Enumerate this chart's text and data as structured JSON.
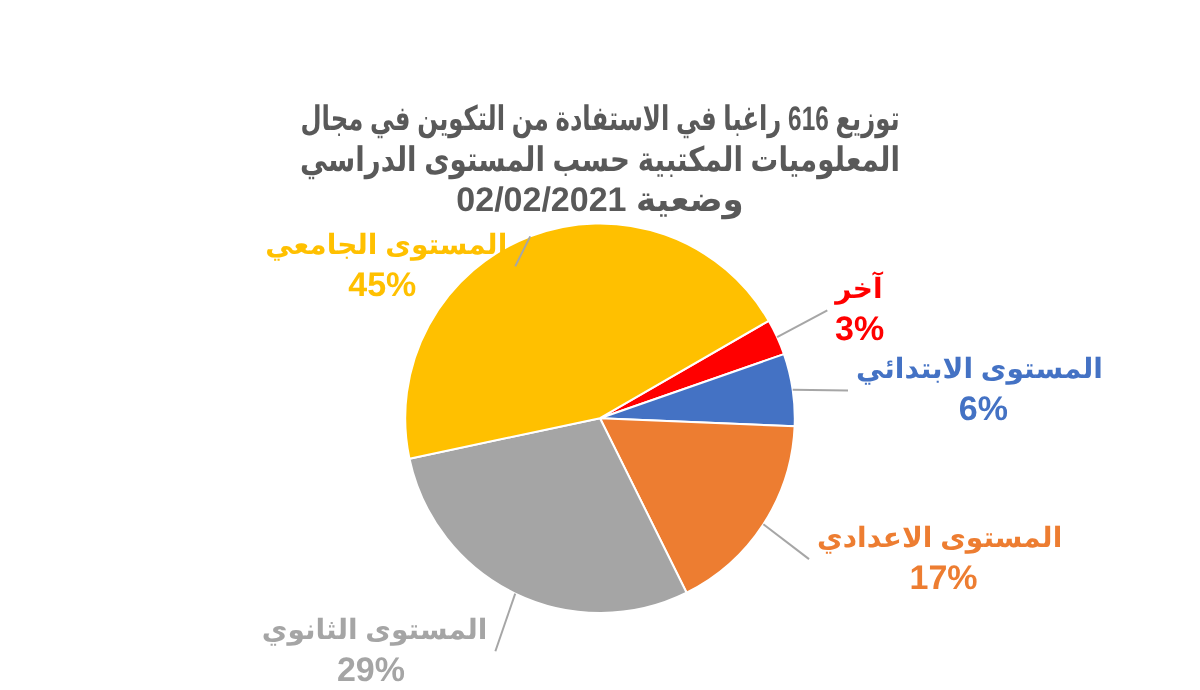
{
  "chart_data": {
    "type": "pie",
    "title": "توزيع 616 راغبا في الاستفادة من التكوين في مجال\nالمعلوميات المكتبية حسب المستوى الدراسي\nوضعية 02/02/2021",
    "categories": [
      "آخر",
      "المستوى الابتدائي",
      "المستوى الاعدادي",
      "المستوى الثانوي",
      "المستوى الجامعي"
    ],
    "values": [
      3,
      6,
      17,
      29,
      45
    ],
    "colors": [
      "#ff0000",
      "#4472c4",
      "#ed7d31",
      "#a5a5a5",
      "#ffc000"
    ],
    "value_labels": [
      "3%",
      "6%",
      "17%",
      "29%",
      "45%"
    ],
    "legend": false
  }
}
